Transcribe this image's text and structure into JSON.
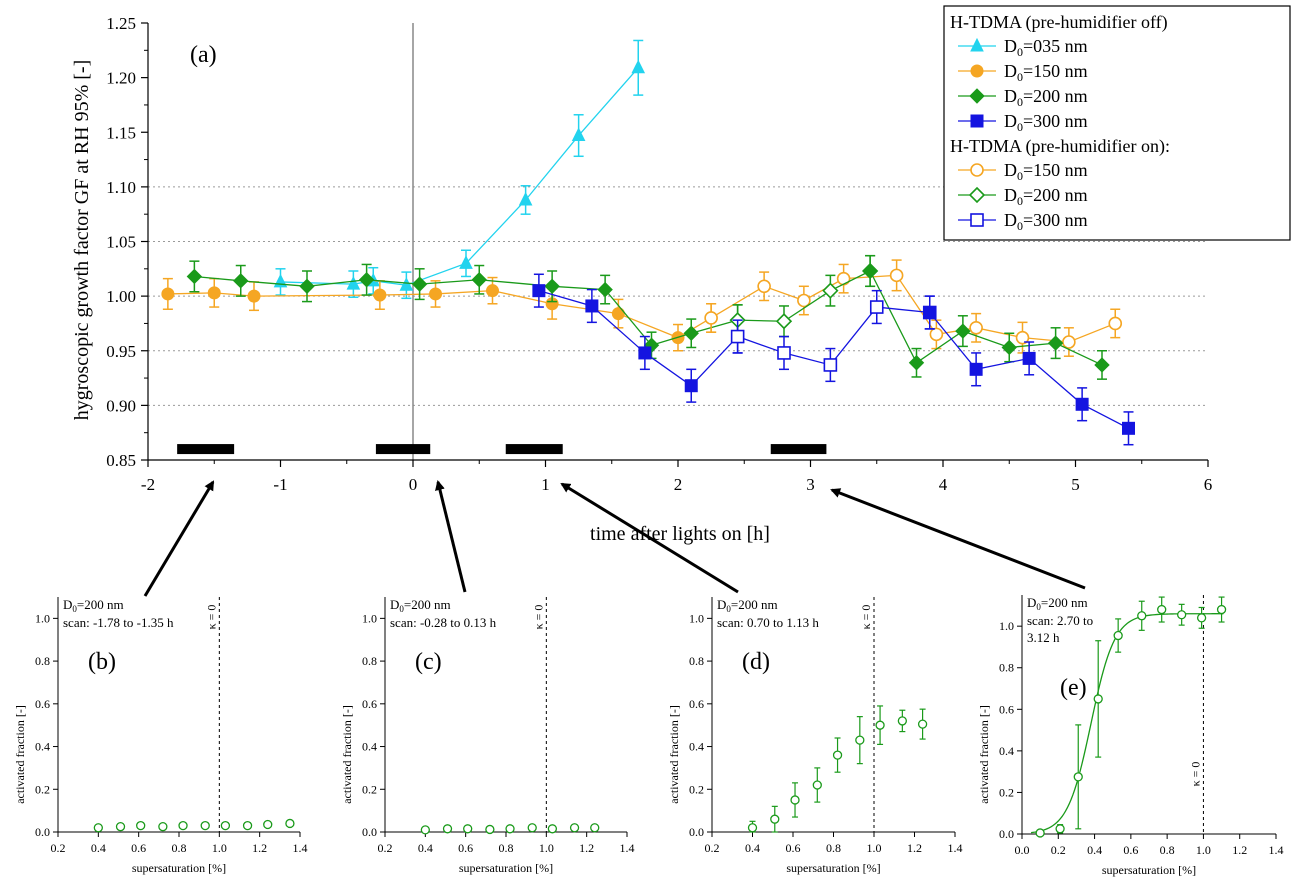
{
  "chart_data": [
    {
      "id": "a",
      "type": "scatter",
      "panel_label": "(a)",
      "xlabel": "time after lights on [h]",
      "ylabel": "hygroscopic growth factor GF at RH 95% [-]",
      "xlim": [
        -2,
        6
      ],
      "ylim": [
        0.85,
        1.25
      ],
      "xticks": [
        -2,
        -1,
        0,
        1,
        2,
        3,
        4,
        5,
        6
      ],
      "yticks": [
        0.85,
        0.9,
        0.95,
        1.0,
        1.05,
        1.1,
        1.15,
        1.2,
        1.25
      ],
      "x_tick_labels": [
        "-2",
        "-1",
        "0",
        "1",
        "2",
        "3",
        "4",
        "5",
        "6"
      ],
      "y_tick_labels": [
        "0.85",
        "0.90",
        "0.95",
        "1.00",
        "1.05",
        "1.10",
        "1.15",
        "1.20",
        "1.25"
      ],
      "gridlines_y": [
        0.9,
        0.95,
        1.0,
        1.05,
        1.1
      ],
      "vertical_line_x": 0,
      "legend_position": "top-right",
      "legend_groups": [
        {
          "header": "H-TDMA (pre-humidifier off)",
          "series": [
            "D0=035 nm",
            "D0=150 nm",
            "D0=200 nm",
            "D0=300 nm"
          ]
        },
        {
          "header": "H-TDMA (pre-humidifier on):",
          "series": [
            "D0=150 nm (on)",
            "D0=200 nm (on)",
            "D0=300 nm (on)"
          ]
        }
      ],
      "series": [
        {
          "name": "D0=035 nm",
          "legend_sub": "0",
          "legend_rest": "=035 nm",
          "color": "#22d3ee",
          "marker": "triangle",
          "filled": true,
          "connect": true,
          "x": [
            -1.0,
            -0.45,
            -0.3,
            -0.05,
            0.4,
            0.85,
            1.25,
            1.7
          ],
          "y": [
            1.013,
            1.011,
            1.014,
            1.01,
            1.03,
            1.088,
            1.147,
            1.209
          ],
          "err": [
            0.012,
            0.012,
            0.012,
            0.012,
            0.012,
            0.013,
            0.019,
            0.025
          ]
        },
        {
          "name": "D0=150 nm",
          "legend_sub": "0",
          "legend_rest": "=150 nm",
          "color": "#f5a623",
          "marker": "circle",
          "filled": true,
          "connect": true,
          "x": [
            -1.85,
            -1.5,
            -1.2,
            -0.25,
            0.17,
            0.6,
            1.05,
            1.55,
            2.0,
            2.25
          ],
          "y": [
            1.002,
            1.003,
            1.0,
            1.001,
            1.002,
            1.005,
            0.993,
            0.984,
            0.962,
            0.98
          ],
          "err": [
            0.014,
            0.013,
            0.013,
            0.013,
            0.012,
            0.012,
            0.014,
            0.013,
            0.012,
            0.013
          ]
        },
        {
          "name": "D0=200 nm",
          "legend_sub": "0",
          "legend_rest": "=200 nm",
          "color": "#1a9a1a",
          "marker": "diamond",
          "filled": true,
          "connect": true,
          "x": [
            -1.65,
            -1.3,
            -0.8,
            -0.35,
            0.05,
            0.5,
            1.05,
            1.45,
            1.8,
            2.1,
            2.45
          ],
          "y": [
            1.018,
            1.014,
            1.009,
            1.015,
            1.011,
            1.015,
            1.009,
            1.006,
            0.955,
            0.966,
            0.978
          ],
          "err": [
            0.014,
            0.014,
            0.014,
            0.014,
            0.014,
            0.013,
            0.014,
            0.013,
            0.012,
            0.013,
            0.014
          ]
        },
        {
          "name": "D0=300 nm",
          "legend_sub": "0",
          "legend_rest": "=300 nm",
          "color": "#1414e0",
          "marker": "square",
          "filled": true,
          "connect": true,
          "x": [
            0.95,
            1.35,
            1.75,
            2.1,
            2.45
          ],
          "y": [
            1.005,
            0.991,
            0.948,
            0.918,
            0.963
          ],
          "err": [
            0.015,
            0.015,
            0.015,
            0.015,
            0.015
          ]
        },
        {
          "name": "D0=150 nm (on)",
          "legend_sub": "0",
          "legend_rest": "=150 nm",
          "color": "#f5a623",
          "marker": "circle",
          "filled": false,
          "connect": true,
          "x": [
            2.25,
            2.65,
            2.95,
            3.25,
            3.65,
            3.95,
            4.25,
            4.6,
            4.95,
            5.3
          ],
          "y": [
            0.98,
            1.009,
            0.996,
            1.016,
            1.019,
            0.965,
            0.971,
            0.962,
            0.958,
            0.975
          ],
          "err": [
            0.013,
            0.013,
            0.013,
            0.013,
            0.014,
            0.013,
            0.013,
            0.014,
            0.013,
            0.013
          ]
        },
        {
          "name": "D0=200 nm (on)",
          "legend_sub": "0",
          "legend_rest": "=200 nm",
          "color": "#1a9a1a",
          "marker": "diamond",
          "filled": false,
          "connect": true,
          "x": [
            2.45,
            2.8,
            3.15,
            3.45
          ],
          "y": [
            0.978,
            0.977,
            1.005,
            1.023
          ],
          "err": [
            0.014,
            0.014,
            0.014,
            0.014
          ]
        },
        {
          "name": "D0=200 nm (after)",
          "legend_sub": "",
          "legend_rest": "",
          "color": "#1a9a1a",
          "marker": "diamond",
          "filled": true,
          "connect": true,
          "hide_in_legend": true,
          "x": [
            3.45,
            3.8,
            4.15,
            4.5,
            4.85,
            5.2
          ],
          "y": [
            1.023,
            0.939,
            0.968,
            0.953,
            0.957,
            0.937
          ],
          "err": [
            0.014,
            0.013,
            0.014,
            0.013,
            0.014,
            0.013
          ]
        },
        {
          "name": "D0=300 nm (on)",
          "legend_sub": "0",
          "legend_rest": "=300 nm",
          "color": "#1414e0",
          "marker": "square",
          "filled": false,
          "connect": true,
          "x": [
            2.45,
            2.8,
            3.15,
            3.5,
            3.9
          ],
          "y": [
            0.963,
            0.948,
            0.937,
            0.99,
            0.985
          ],
          "err": [
            0.015,
            0.015,
            0.015,
            0.015,
            0.015
          ]
        },
        {
          "name": "D0=300 nm (after)",
          "legend_sub": "",
          "legend_rest": "",
          "color": "#1414e0",
          "marker": "square",
          "filled": true,
          "connect": true,
          "hide_in_legend": true,
          "x": [
            3.9,
            4.25,
            4.65,
            5.05,
            5.4
          ],
          "y": [
            0.985,
            0.933,
            0.943,
            0.901,
            0.879
          ],
          "err": [
            0.015,
            0.015,
            0.015,
            0.015,
            0.015
          ]
        }
      ],
      "scan_bars_x": [
        [
          -1.78,
          -1.35
        ],
        [
          -0.28,
          0.13
        ],
        [
          0.7,
          1.13
        ],
        [
          2.7,
          3.12
        ]
      ],
      "scan_bar_y": 0.86
    },
    {
      "id": "b",
      "type": "scatter",
      "panel_label": "(b)",
      "annotation_line1": "D0=200 nm",
      "annotation_line2": "scan: -1.78 to -1.35 h",
      "annotation_line3": "",
      "xlabel": "supersaturation [%]",
      "ylabel": "activated fraction [-]",
      "xlim": [
        0.2,
        1.4
      ],
      "ylim": [
        0,
        1.1
      ],
      "xticks": [
        0.2,
        0.4,
        0.6,
        0.8,
        1.0,
        1.2,
        1.4
      ],
      "yticks": [
        0,
        0.2,
        0.4,
        0.6,
        0.8,
        1.0
      ],
      "x_tick_labels": [
        "0.2",
        "0.4",
        "0.6",
        "0.8",
        "1.0",
        "1.2",
        "1.4"
      ],
      "y_tick_labels": [
        "0.0",
        "0.2",
        "0.4",
        "0.6",
        "0.8",
        "1.0"
      ],
      "kappa_line_x": 1.0,
      "kappa_label": "κ = 0",
      "x": [
        0.4,
        0.51,
        0.61,
        0.72,
        0.82,
        0.93,
        1.03,
        1.14,
        1.24,
        1.35
      ],
      "y": [
        0.02,
        0.025,
        0.03,
        0.025,
        0.03,
        0.03,
        0.03,
        0.03,
        0.035,
        0.04
      ],
      "err": [
        0.01,
        0.01,
        0.01,
        0.01,
        0.01,
        0.01,
        0.01,
        0.01,
        0.01,
        0.01
      ],
      "color": "#1a9a1a"
    },
    {
      "id": "c",
      "type": "scatter",
      "panel_label": "(c)",
      "annotation_line1": "D0=200 nm",
      "annotation_line2": "scan: -0.28 to 0.13 h",
      "annotation_line3": "",
      "xlabel": "supersaturation [%]",
      "ylabel": "activated fraction [-]",
      "xlim": [
        0.2,
        1.4
      ],
      "ylim": [
        0,
        1.1
      ],
      "xticks": [
        0.2,
        0.4,
        0.6,
        0.8,
        1.0,
        1.2,
        1.4
      ],
      "yticks": [
        0,
        0.2,
        0.4,
        0.6,
        0.8,
        1.0
      ],
      "x_tick_labels": [
        "0.2",
        "0.4",
        "0.6",
        "0.8",
        "1.0",
        "1.2",
        "1.4"
      ],
      "y_tick_labels": [
        "0.0",
        "0.2",
        "0.4",
        "0.6",
        "0.8",
        "1.0"
      ],
      "kappa_line_x": 1.0,
      "kappa_label": "κ = 0",
      "x": [
        0.4,
        0.51,
        0.61,
        0.72,
        0.82,
        0.93,
        1.03,
        1.14,
        1.24
      ],
      "y": [
        0.01,
        0.015,
        0.015,
        0.012,
        0.015,
        0.02,
        0.015,
        0.02,
        0.02
      ],
      "err": [
        0.01,
        0.01,
        0.01,
        0.01,
        0.01,
        0.01,
        0.01,
        0.01,
        0.01
      ],
      "color": "#1a9a1a"
    },
    {
      "id": "d",
      "type": "scatter",
      "panel_label": "(d)",
      "annotation_line1": "D0=200 nm",
      "annotation_line2": "scan: 0.70 to 1.13 h",
      "annotation_line3": "",
      "xlabel": "supersaturation [%]",
      "ylabel": "activated fraction [-]",
      "xlim": [
        0.2,
        1.4
      ],
      "ylim": [
        0,
        1.1
      ],
      "xticks": [
        0.2,
        0.4,
        0.6,
        0.8,
        1.0,
        1.2,
        1.4
      ],
      "yticks": [
        0,
        0.2,
        0.4,
        0.6,
        0.8,
        1.0
      ],
      "x_tick_labels": [
        "0.2",
        "0.4",
        "0.6",
        "0.8",
        "1.0",
        "1.2",
        "1.4"
      ],
      "y_tick_labels": [
        "0.0",
        "0.2",
        "0.4",
        "0.6",
        "0.8",
        "1.0"
      ],
      "kappa_line_x": 1.0,
      "kappa_label": "κ = 0",
      "x": [
        0.4,
        0.51,
        0.61,
        0.72,
        0.82,
        0.93,
        1.03,
        1.14,
        1.24
      ],
      "y": [
        0.02,
        0.06,
        0.15,
        0.22,
        0.36,
        0.43,
        0.5,
        0.52,
        0.505
      ],
      "err": [
        0.03,
        0.06,
        0.08,
        0.08,
        0.08,
        0.11,
        0.09,
        0.05,
        0.07
      ],
      "color": "#1a9a1a"
    },
    {
      "id": "e",
      "type": "scatter",
      "panel_label": "(e)",
      "annotation_line1": "D0=200 nm",
      "annotation_line2": "scan: 2.70 to",
      "annotation_line3": "3.12 h",
      "xlabel": "supersaturation [%]",
      "ylabel": "activated fraction [-]",
      "xlim": [
        0.0,
        1.4
      ],
      "ylim": [
        0,
        1.15
      ],
      "xticks": [
        0.0,
        0.2,
        0.4,
        0.6,
        0.8,
        1.0,
        1.2,
        1.4
      ],
      "yticks": [
        0,
        0.2,
        0.4,
        0.6,
        0.8,
        1.0
      ],
      "x_tick_labels": [
        "0.0",
        "0.2",
        "0.4",
        "0.6",
        "0.8",
        "1.0",
        "1.2",
        "1.4"
      ],
      "y_tick_labels": [
        "0.0",
        "0.2",
        "0.4",
        "0.6",
        "0.8",
        "1.0"
      ],
      "kappa_line_x": 1.0,
      "kappa_label": "κ = 0",
      "x": [
        0.1,
        0.21,
        0.31,
        0.42,
        0.53,
        0.66,
        0.77,
        0.88,
        0.99,
        1.1
      ],
      "y": [
        0.005,
        0.025,
        0.275,
        0.65,
        0.955,
        1.05,
        1.08,
        1.055,
        1.04,
        1.08
      ],
      "err": [
        0.01,
        0.02,
        0.25,
        0.28,
        0.08,
        0.07,
        0.06,
        0.05,
        0.05,
        0.06
      ],
      "color": "#1a9a1a",
      "fit_curve": true
    }
  ]
}
